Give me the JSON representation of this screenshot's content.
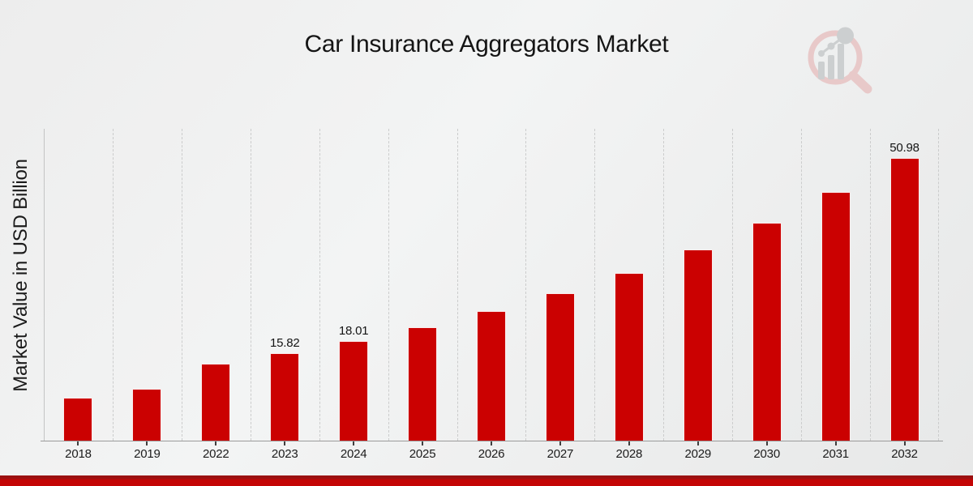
{
  "chart_data": {
    "type": "bar",
    "title": "Car Insurance Aggregators Market",
    "ylabel": "Market Value in USD Billion",
    "xlabel": "",
    "categories": [
      "2018",
      "2019",
      "2022",
      "2023",
      "2024",
      "2025",
      "2026",
      "2027",
      "2028",
      "2029",
      "2030",
      "2031",
      "2032"
    ],
    "values": [
      7.8,
      9.32,
      13.89,
      15.82,
      18.01,
      20.51,
      23.36,
      26.61,
      30.31,
      34.52,
      39.32,
      44.78,
      50.98
    ],
    "value_labels": {
      "2023": "15.82",
      "2024": "18.01",
      "2032": "50.98"
    },
    "ylim": [
      0,
      56
    ],
    "grid": "vertical-dashed",
    "legend": "none",
    "bar_color": "#cb0101",
    "bar_border_color": "#ffffff",
    "background_color": "#ebecec"
  },
  "footer": {
    "accent_color": "#c40505"
  },
  "watermark": {
    "name": "magnifier-bar-chart-logo",
    "ring_color": "#e8c5c5",
    "bars_color": "#c9cccd"
  }
}
